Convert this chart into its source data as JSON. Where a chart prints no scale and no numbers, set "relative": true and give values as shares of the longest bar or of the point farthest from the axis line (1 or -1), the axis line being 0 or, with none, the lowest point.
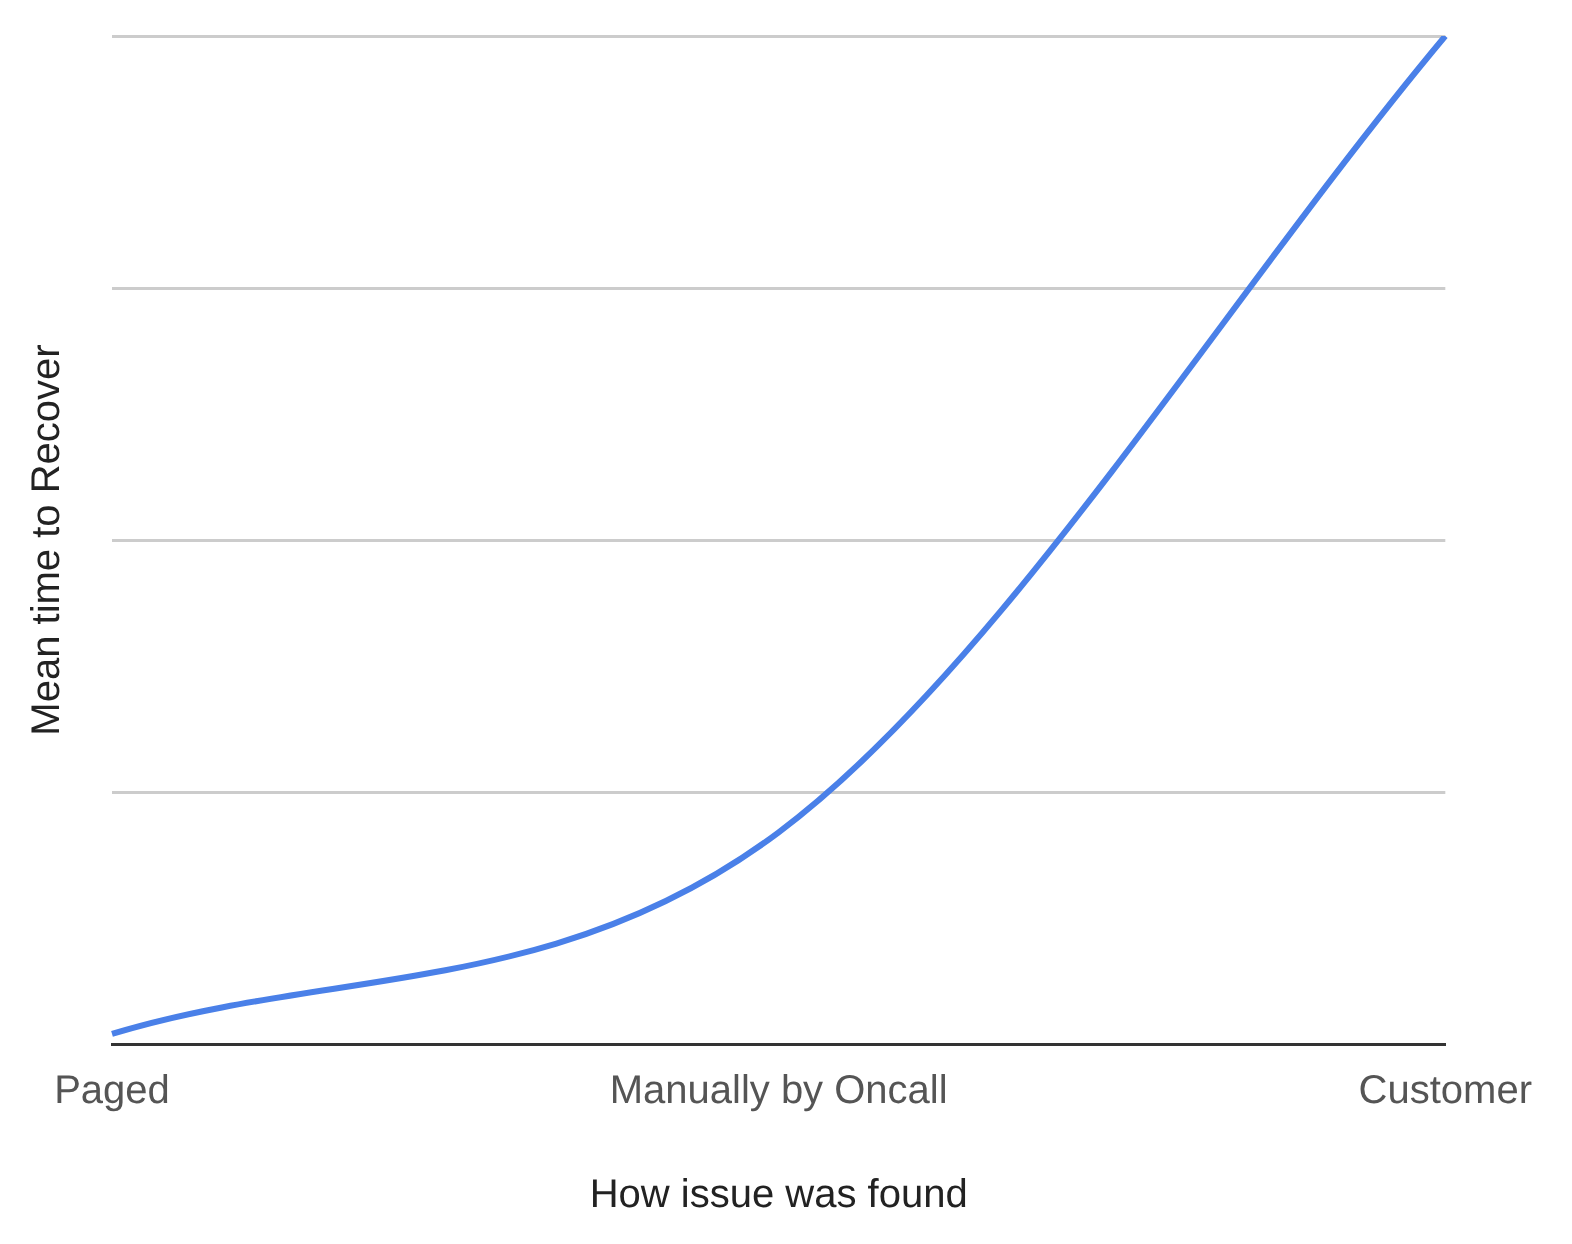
{
  "chart_data": {
    "type": "line",
    "relative": true,
    "xlabel": "How issue was found",
    "ylabel": "Mean time to Recover",
    "categories": [
      "Paged",
      "Manually by Oncall",
      "Customer"
    ],
    "series": [
      {
        "color": "#4a80e8",
        "values": [
          0.01,
          0.21,
          1
        ]
      }
    ],
    "grid": "y",
    "legend": false,
    "marker": "none"
  }
}
